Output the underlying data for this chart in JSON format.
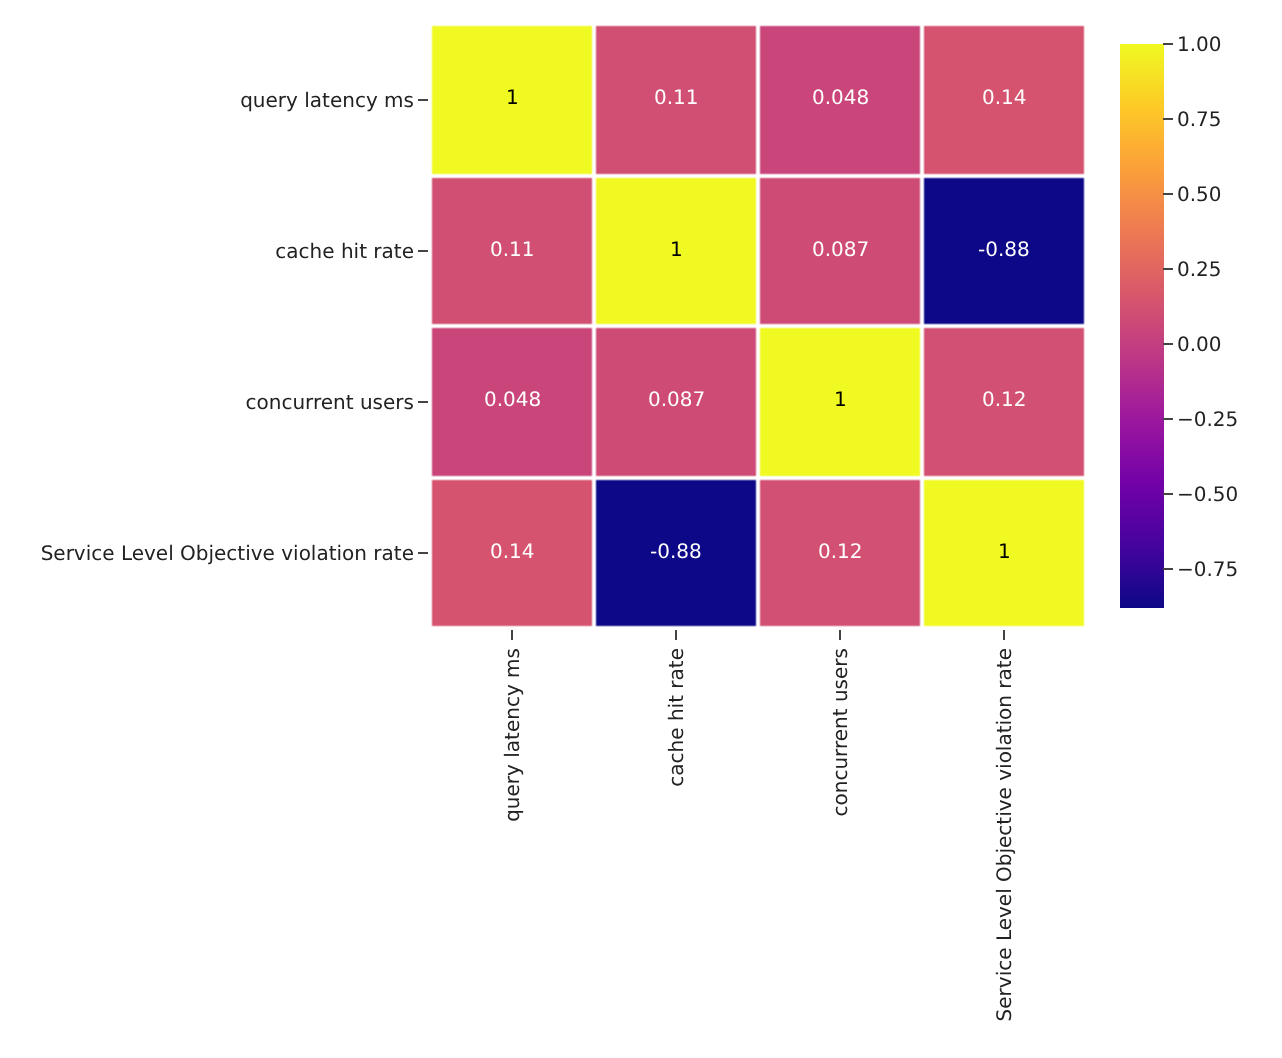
{
  "chart_data": {
    "type": "heatmap",
    "categories": [
      "query latency ms",
      "cache hit rate",
      "concurrent users",
      "Service Level Objective violation rate"
    ],
    "y_categories": [
      "query latency ms",
      "cache hit rate",
      "concurrent users",
      "Service Level Objective violation rate"
    ],
    "cells": [
      [
        1,
        0.11,
        0.048,
        0.14
      ],
      [
        0.11,
        1,
        0.087,
        -0.88
      ],
      [
        0.048,
        0.087,
        1,
        0.12
      ],
      [
        0.14,
        -0.88,
        0.12,
        1
      ]
    ],
    "data_labels": true,
    "clim": [
      -0.88,
      1.0
    ],
    "cticks": [
      {
        "value": -0.75,
        "label": "−0.75"
      },
      {
        "value": -0.5,
        "label": "−0.50"
      },
      {
        "value": -0.25,
        "label": "−0.25"
      },
      {
        "value": 0,
        "label": "0.00"
      },
      {
        "value": 0.25,
        "label": "0.25"
      },
      {
        "value": 0.5,
        "label": "0.50"
      },
      {
        "value": 0.75,
        "label": "0.75"
      },
      {
        "value": 1.0,
        "label": "1.00"
      }
    ]
  }
}
